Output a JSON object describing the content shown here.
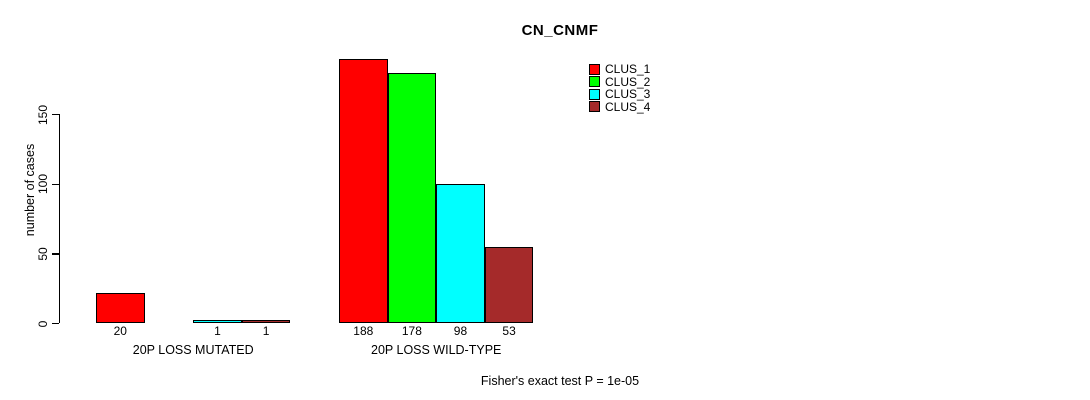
{
  "chart_data": {
    "type": "bar",
    "title": "CN_CNMF",
    "ylabel": "number of cases",
    "xlabel": "",
    "yticks": [
      0,
      50,
      100,
      150
    ],
    "ylim": [
      0,
      188
    ],
    "grid": false,
    "legend_position": "top-right",
    "categories": [
      "20P LOSS MUTATED",
      "20P LOSS WILD-TYPE"
    ],
    "series": [
      {
        "name": "CLUS_1",
        "color": "#ff0000",
        "values": [
          20,
          188
        ],
        "bar_labels": [
          "20",
          "188"
        ]
      },
      {
        "name": "CLUS_2",
        "color": "#00ff00",
        "values": [
          0,
          178
        ],
        "bar_labels": [
          "",
          "178"
        ]
      },
      {
        "name": "CLUS_3",
        "color": "#00ffff",
        "values": [
          1,
          98
        ],
        "bar_labels": [
          "1",
          "98"
        ]
      },
      {
        "name": "CLUS_4",
        "color": "#a52a2a",
        "values": [
          1,
          53
        ],
        "bar_labels": [
          "1",
          "53"
        ]
      }
    ],
    "annotation": "Fisher's exact test P = 1e-05"
  }
}
